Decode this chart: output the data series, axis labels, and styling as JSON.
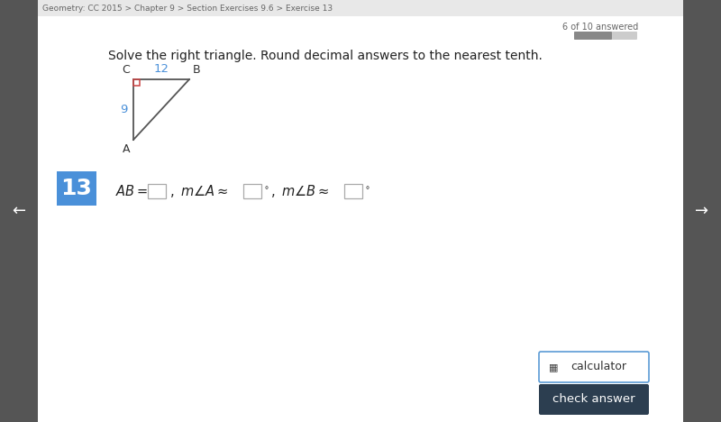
{
  "bg_color": "#e8e8e8",
  "main_bg": "#ffffff",
  "breadcrumb_bg": "#e8e8e8",
  "breadcrumb": "Geometry: CC 2015 > Chapter 9 > Section Exercises 9.6 > Exercise 13",
  "breadcrumb_color": "#666666",
  "progress_text": "6 of 10 answered",
  "instruction": "Solve the right triangle. Round decimal answers to the nearest tenth.",
  "triangle_line_color": "#555555",
  "right_angle_color": "#cc4444",
  "side_label_color": "#4a90d9",
  "label_C": "C",
  "label_B": "B",
  "label_A": "A",
  "side_CB": "12",
  "side_CA": "9",
  "number_badge": "13",
  "badge_color": "#4a90d9",
  "badge_text_color": "#ffffff",
  "panel_color": "#555555",
  "calc_button_text": " calculator",
  "check_button_text": "check answer",
  "check_button_bg": "#2c3e50",
  "check_button_text_color": "#ffffff",
  "calc_button_border": "#5b9bd5"
}
